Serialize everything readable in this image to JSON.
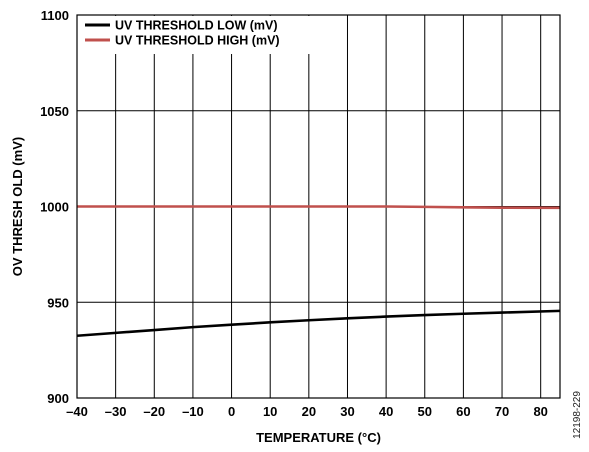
{
  "chart_data": {
    "type": "line",
    "xlabel": "TEMPERATURE (°C)",
    "ylabel": "OV THRESH OLD (mV)",
    "xlim": [
      -40,
      85
    ],
    "ylim": [
      900,
      1100
    ],
    "x_ticks": [
      -40,
      -30,
      -20,
      -10,
      0,
      10,
      20,
      30,
      40,
      50,
      60,
      70,
      80
    ],
    "x_tick_labels": [
      "–40",
      "–30",
      "–20",
      "–10",
      "0",
      "10",
      "20",
      "30",
      "40",
      "50",
      "60",
      "70",
      "80"
    ],
    "y_ticks": [
      900,
      950,
      1000,
      1050,
      1100
    ],
    "y_tick_labels": [
      "900",
      "950",
      "1000",
      "1050",
      "1100"
    ],
    "grid": true,
    "legend_position": "top-left",
    "series": [
      {
        "name": "UV THRESHOLD LOW (mV)",
        "color": "#000000",
        "x": [
          -40,
          -30,
          -20,
          -10,
          0,
          10,
          20,
          30,
          40,
          50,
          60,
          70,
          85
        ],
        "y": [
          932.5,
          934.0,
          935.5,
          937.0,
          938.3,
          939.5,
          940.6,
          941.6,
          942.5,
          943.3,
          944.0,
          944.6,
          945.5
        ]
      },
      {
        "name": "UV THRESHOLD HIGH (mV)",
        "color": "#c0504d",
        "x": [
          -40,
          -20,
          0,
          20,
          40,
          50,
          60,
          70,
          85
        ],
        "y": [
          1000.0,
          1000.0,
          1000.0,
          1000.0,
          1000.0,
          999.8,
          999.6,
          999.4,
          999.3
        ]
      }
    ]
  },
  "figure_id": "12198-229"
}
